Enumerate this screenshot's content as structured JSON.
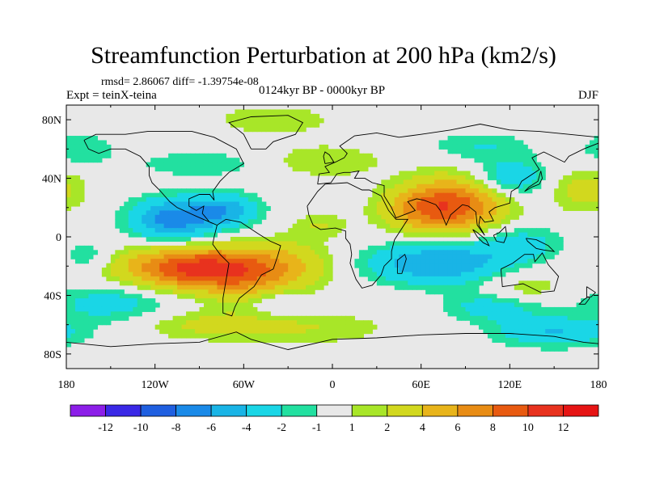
{
  "chart_data": {
    "type": "filled-contour-map",
    "title": "Streamfunction Perturbation at 200 hPa (km2/s)",
    "stats_line": "rmsd= 2.86067 diff= -1.39754e-08",
    "experiment": "Expt = teinX-teina",
    "period": "0124kyr BP - 0000kyr BP",
    "season": "DJF",
    "x_ticks": [
      "180",
      "120W",
      "60W",
      "0",
      "60E",
      "120E",
      "180"
    ],
    "y_ticks": [
      "80N",
      "40N",
      "0",
      "40S",
      "80S"
    ],
    "lon_range": [
      -180,
      180
    ],
    "lat_range": [
      -90,
      90
    ],
    "colorbar_labels": [
      "-12",
      "-10",
      "-8",
      "-6",
      "-4",
      "-2",
      "-1",
      "1",
      "2",
      "4",
      "6",
      "8",
      "10",
      "12"
    ],
    "colorbar_colors": [
      "#8c1ee8",
      "#3a28e6",
      "#1f5fe0",
      "#1a8ae8",
      "#19b4e6",
      "#1ad6e6",
      "#22e0a0",
      "#e8e8e8",
      "#a8e628",
      "#d2d81e",
      "#e8b41a",
      "#e88c14",
      "#e85a10",
      "#e8321e",
      "#e61414"
    ],
    "missing_color": "#e8e8e8",
    "anomaly_regions": [
      {
        "name": "south-america-high",
        "lon": -88,
        "lat": -22,
        "peak": 9,
        "sx": 28,
        "sy": 10
      },
      {
        "name": "south-pacific-high",
        "lon": -125,
        "lat": -20,
        "peak": 3,
        "sx": 40,
        "sy": 10
      },
      {
        "name": "south-atlantic-high",
        "lon": -30,
        "lat": -20,
        "peak": 4,
        "sx": 22,
        "sy": 12
      },
      {
        "name": "south-america-high-2",
        "lon": -58,
        "lat": -30,
        "peak": 3,
        "sx": 18,
        "sy": 14
      },
      {
        "name": "tibetan-high",
        "lon": 82,
        "lat": 22,
        "peak": 9,
        "sx": 24,
        "sy": 13
      },
      {
        "name": "arabia-high",
        "lon": 55,
        "lat": 18,
        "peak": 3,
        "sx": 18,
        "sy": 10
      },
      {
        "name": "north-atlantic-high",
        "lon": -5,
        "lat": 52,
        "peak": 2,
        "sx": 28,
        "sy": 8
      },
      {
        "name": "greenland-high",
        "lon": -40,
        "lat": 80,
        "peak": 2,
        "sx": 28,
        "sy": 7
      },
      {
        "name": "west-africa-high",
        "lon": -8,
        "lat": 8,
        "peak": 2,
        "sx": 13,
        "sy": 6
      },
      {
        "name": "north-pacific-high",
        "lon": 170,
        "lat": 32,
        "peak": 3,
        "sx": 16,
        "sy": 10
      },
      {
        "name": "australia-high",
        "lon": 130,
        "lat": -35,
        "peak": 2,
        "sx": 18,
        "sy": 8
      },
      {
        "name": "southern-ocean-high",
        "lon": -20,
        "lat": -62,
        "peak": 2,
        "sx": 42,
        "sy": 8
      },
      {
        "name": "southern-ocean-high-2",
        "lon": -90,
        "lat": -60,
        "peak": 2,
        "sx": 30,
        "sy": 7
      },
      {
        "name": "mexico-low",
        "lon": -108,
        "lat": 12,
        "peak": -7,
        "sx": 20,
        "sy": 10
      },
      {
        "name": "caribbean-low",
        "lon": -72,
        "lat": 18,
        "peak": -5,
        "sx": 16,
        "sy": 8
      },
      {
        "name": "indian-ocean-low",
        "lon": 70,
        "lat": -18,
        "peak": -6,
        "sx": 32,
        "sy": 10
      },
      {
        "name": "west-pacific-low",
        "lon": 125,
        "lat": -5,
        "peak": -3,
        "sx": 22,
        "sy": 9
      },
      {
        "name": "china-low",
        "lon": 120,
        "lat": 40,
        "peak": -4,
        "sx": 18,
        "sy": 9
      },
      {
        "name": "north-pacific-low",
        "lon": -170,
        "lat": 60,
        "peak": -2,
        "sx": 16,
        "sy": 8
      },
      {
        "name": "siberia-low",
        "lon": 100,
        "lat": 62,
        "peak": -2,
        "sx": 25,
        "sy": 7
      },
      {
        "name": "north-america-low",
        "lon": -90,
        "lat": 50,
        "peak": -2,
        "sx": 30,
        "sy": 6
      },
      {
        "name": "south-pacific-low",
        "lon": -150,
        "lat": -45,
        "peak": -3,
        "sx": 28,
        "sy": 9
      },
      {
        "name": "southwest-pacific-low",
        "lon": -165,
        "lat": -15,
        "peak": -3,
        "sx": 14,
        "sy": 8
      },
      {
        "name": "south-indian-low",
        "lon": 110,
        "lat": -48,
        "peak": -3,
        "sx": 24,
        "sy": 7
      },
      {
        "name": "antarctic-low",
        "lon": 150,
        "lat": -65,
        "peak": -4,
        "sx": 28,
        "sy": 7
      },
      {
        "name": "southwest-atlantic-low",
        "lon": -40,
        "lat": -45,
        "peak": -2,
        "sx": 14,
        "sy": 6
      }
    ]
  }
}
